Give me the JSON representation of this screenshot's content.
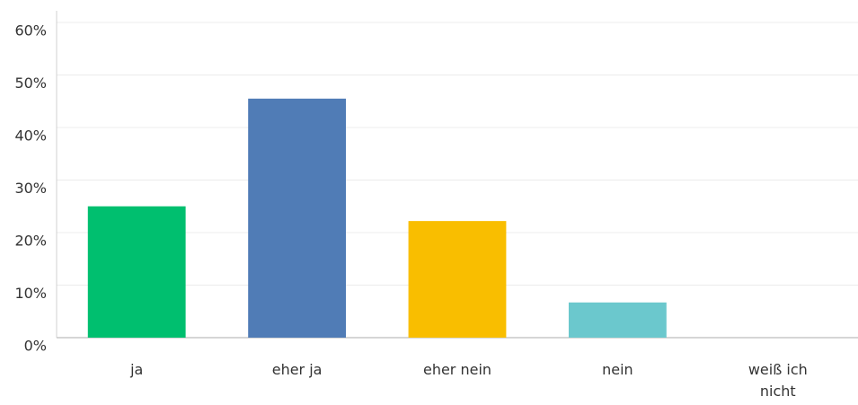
{
  "chart_data": {
    "type": "bar",
    "categories": [
      "ja",
      "eher ja",
      "eher nein",
      "nein",
      "weiß ich nicht"
    ],
    "values": [
      25,
      45.5,
      22.2,
      6.7,
      0
    ],
    "colors": [
      "#00bf6f",
      "#507cb6",
      "#f9be00",
      "#6bc8cd",
      "#a0a0a0"
    ],
    "ylim": [
      0,
      60
    ],
    "yticks": [
      {
        "value": 0,
        "label": "0%"
      },
      {
        "value": 10,
        "label": "10%"
      },
      {
        "value": 20,
        "label": "20%"
      },
      {
        "value": 30,
        "label": "30%"
      },
      {
        "value": 40,
        "label": "40%"
      },
      {
        "value": 50,
        "label": "50%"
      },
      {
        "value": 60,
        "label": "60%"
      }
    ],
    "grid": true
  }
}
